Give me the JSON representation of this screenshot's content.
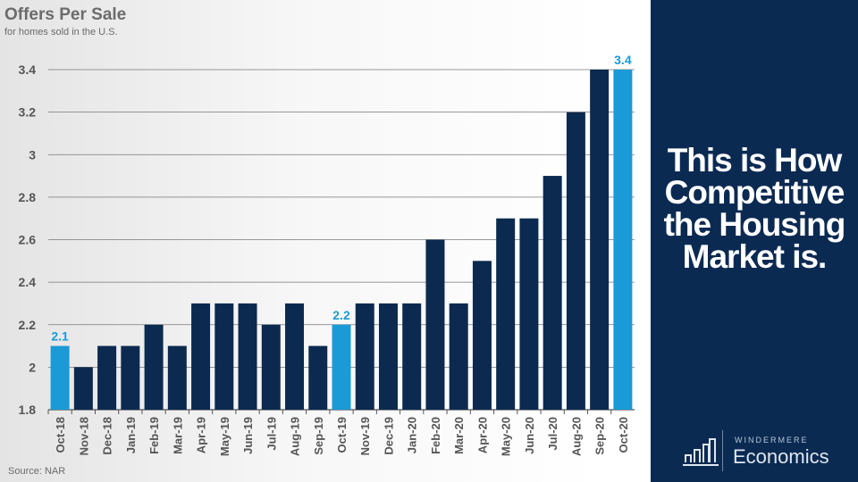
{
  "title": "Offers Per Sale",
  "subtitle": "for homes sold in the U.S.",
  "source": "Source: NAR",
  "panel": {
    "headline": "This is How Competitive the Housing Market is.",
    "brand_top": "WINDERMERE",
    "brand_bottom": "Economics",
    "logo_icon": "bar-chart-icon"
  },
  "colors": {
    "bar": "#0c2a4f",
    "highlight": "#1a9ad6",
    "panel": "#0b2a52",
    "title": "#6b6b6b"
  },
  "chart_data": {
    "type": "bar",
    "title": "Offers Per Sale",
    "subtitle": "for homes sold in the U.S.",
    "categories": [
      "Oct-18",
      "Nov-18",
      "Dec-18",
      "Jan-19",
      "Feb-19",
      "Mar-19",
      "Apr-19",
      "May-19",
      "Jun-19",
      "Jul-19",
      "Aug-19",
      "Sep-19",
      "Oct-19",
      "Nov-19",
      "Dec-19",
      "Jan-20",
      "Feb-20",
      "Mar-20",
      "Apr-20",
      "May-20",
      "Jun-20",
      "Jul-20",
      "Aug-20",
      "Sep-20",
      "Oct-20"
    ],
    "values": [
      2.1,
      2.0,
      2.1,
      2.1,
      2.2,
      2.1,
      2.3,
      2.3,
      2.3,
      2.2,
      2.3,
      2.1,
      2.2,
      2.3,
      2.3,
      2.3,
      2.6,
      2.3,
      2.5,
      2.7,
      2.7,
      2.9,
      3.2,
      3.4,
      3.4
    ],
    "highlighted": [
      "Oct-18",
      "Oct-19",
      "Oct-20"
    ],
    "data_labels": {
      "Oct-18": "2.1",
      "Oct-19": "2.2",
      "Oct-20": "3.4"
    },
    "yticks": [
      "1.8",
      "2",
      "2.2",
      "2.4",
      "2.6",
      "2.8",
      "3",
      "3.2",
      "3.4"
    ],
    "ylim": [
      1.8,
      3.4
    ],
    "grid": true,
    "xlabel": "",
    "ylabel": ""
  }
}
